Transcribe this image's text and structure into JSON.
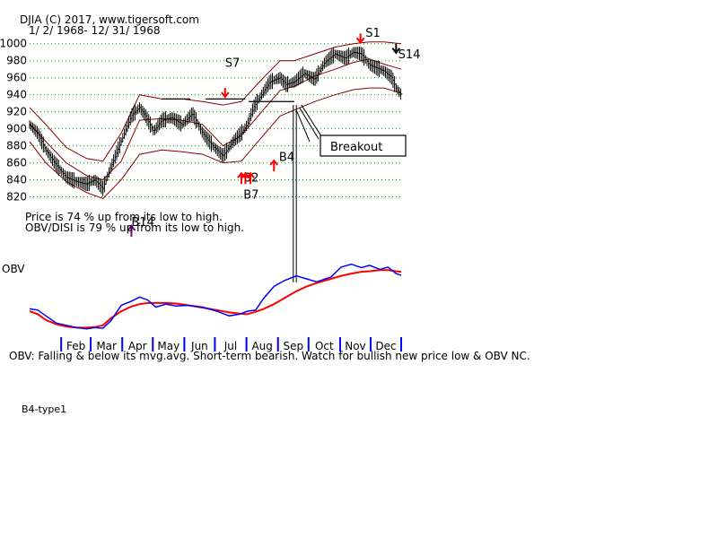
{
  "chart_data": {
    "type": "line",
    "title": "DJIA    (C) 2017, www.tigersoft.com",
    "subtitle": "1/ 2/ 1968- 12/ 31/ 1968",
    "ylim": [
      810,
      1005
    ],
    "y_ticks": [
      1000,
      980,
      960,
      940,
      920,
      900,
      880,
      860,
      840,
      820
    ],
    "months": [
      "Feb",
      "Mar",
      "Apr",
      "May",
      "Jun",
      "Jul",
      "Aug",
      "Sep",
      "Oct",
      "Nov",
      "Dec"
    ],
    "xlim": [
      0,
      365
    ],
    "price": {
      "x": [
        0,
        8,
        16,
        26,
        36,
        46,
        56,
        64,
        72,
        80,
        90,
        100,
        108,
        114,
        122,
        130,
        140,
        150,
        160,
        170,
        180,
        190,
        200,
        208,
        214,
        220,
        228,
        236,
        246,
        252,
        260,
        270,
        280,
        290,
        300,
        310,
        318,
        326,
        334,
        340,
        348,
        356,
        360,
        365
      ],
      "close": [
        905,
        895,
        875,
        858,
        843,
        838,
        835,
        840,
        830,
        855,
        885,
        915,
        925,
        915,
        897,
        910,
        913,
        905,
        918,
        895,
        880,
        868,
        885,
        895,
        905,
        925,
        940,
        955,
        960,
        952,
        955,
        965,
        958,
        978,
        988,
        983,
        990,
        988,
        975,
        972,
        968,
        960,
        948,
        940
      ]
    },
    "band": {
      "x": [
        0,
        16,
        36,
        56,
        72,
        90,
        108,
        130,
        150,
        170,
        190,
        208,
        228,
        246,
        260,
        280,
        300,
        318,
        334,
        348,
        365
      ],
      "upper": [
        925,
        905,
        878,
        865,
        862,
        895,
        940,
        935,
        935,
        932,
        928,
        932,
        958,
        980,
        980,
        988,
        996,
        1000,
        1002,
        1002,
        1000
      ],
      "middle": [
        905,
        885,
        860,
        845,
        840,
        862,
        910,
        912,
        910,
        905,
        880,
        892,
        920,
        945,
        950,
        962,
        970,
        978,
        982,
        976,
        970
      ],
      "lower": [
        885,
        860,
        838,
        825,
        818,
        840,
        870,
        875,
        873,
        870,
        860,
        862,
        890,
        915,
        922,
        932,
        940,
        946,
        948,
        948,
        942
      ]
    },
    "obv": {
      "x": [
        0,
        8,
        16,
        26,
        36,
        46,
        56,
        64,
        72,
        80,
        90,
        100,
        108,
        116,
        124,
        134,
        144,
        156,
        170,
        184,
        196,
        206,
        214,
        222,
        230,
        240,
        250,
        262,
        272,
        282,
        296,
        306,
        316,
        326,
        334,
        344,
        352,
        360,
        365
      ],
      "value": [
        42,
        40,
        30,
        18,
        14,
        10,
        8,
        10,
        9,
        22,
        48,
        55,
        62,
        57,
        45,
        50,
        47,
        48,
        45,
        38,
        30,
        33,
        38,
        40,
        60,
        80,
        90,
        98,
        93,
        88,
        96,
        113,
        118,
        112,
        116,
        109,
        113,
        102,
        99
      ],
      "ma": [
        38,
        33,
        23,
        16,
        12,
        10,
        10,
        11,
        14,
        26,
        38,
        46,
        50,
        52,
        52,
        52,
        51,
        48,
        44,
        40,
        36,
        34,
        33,
        37,
        42,
        50,
        60,
        72,
        80,
        86,
        93,
        98,
        102,
        105,
        106,
        108,
        108,
        106,
        105
      ]
    },
    "annotations": [
      {
        "text": "S1",
        "x": 330,
        "y": 1008
      },
      {
        "text": "S14",
        "x": 362,
        "y": 983
      },
      {
        "text": "S7",
        "x": 192,
        "y": 973
      },
      {
        "text": "B4",
        "x": 245,
        "y": 862
      },
      {
        "text": "B2",
        "x": 210,
        "y": 838
      },
      {
        "text": "B7",
        "x": 210,
        "y": 818
      },
      {
        "text": "B14",
        "x": 100,
        "y": 786
      }
    ],
    "breakout_label": "Breakout",
    "obv_label": "OBV",
    "stat_price": "Price is  74 % up from its low to high.",
    "stat_obv": "OBV/DISI is  79 % up from its low to high.",
    "obv_comment": "OBV: Falling & below its mvg.avg. Short-term bearish. Watch for bullish new price low & OBV NC."
  },
  "footer_label": "B4-type1",
  "colors": {
    "price": "#000000",
    "band": "#8b0000",
    "obv": "#0000ff",
    "obv_ma": "#ff0000",
    "signal": "#ff0000",
    "grid": "#00aa00",
    "month_tick": "#0000ff"
  }
}
